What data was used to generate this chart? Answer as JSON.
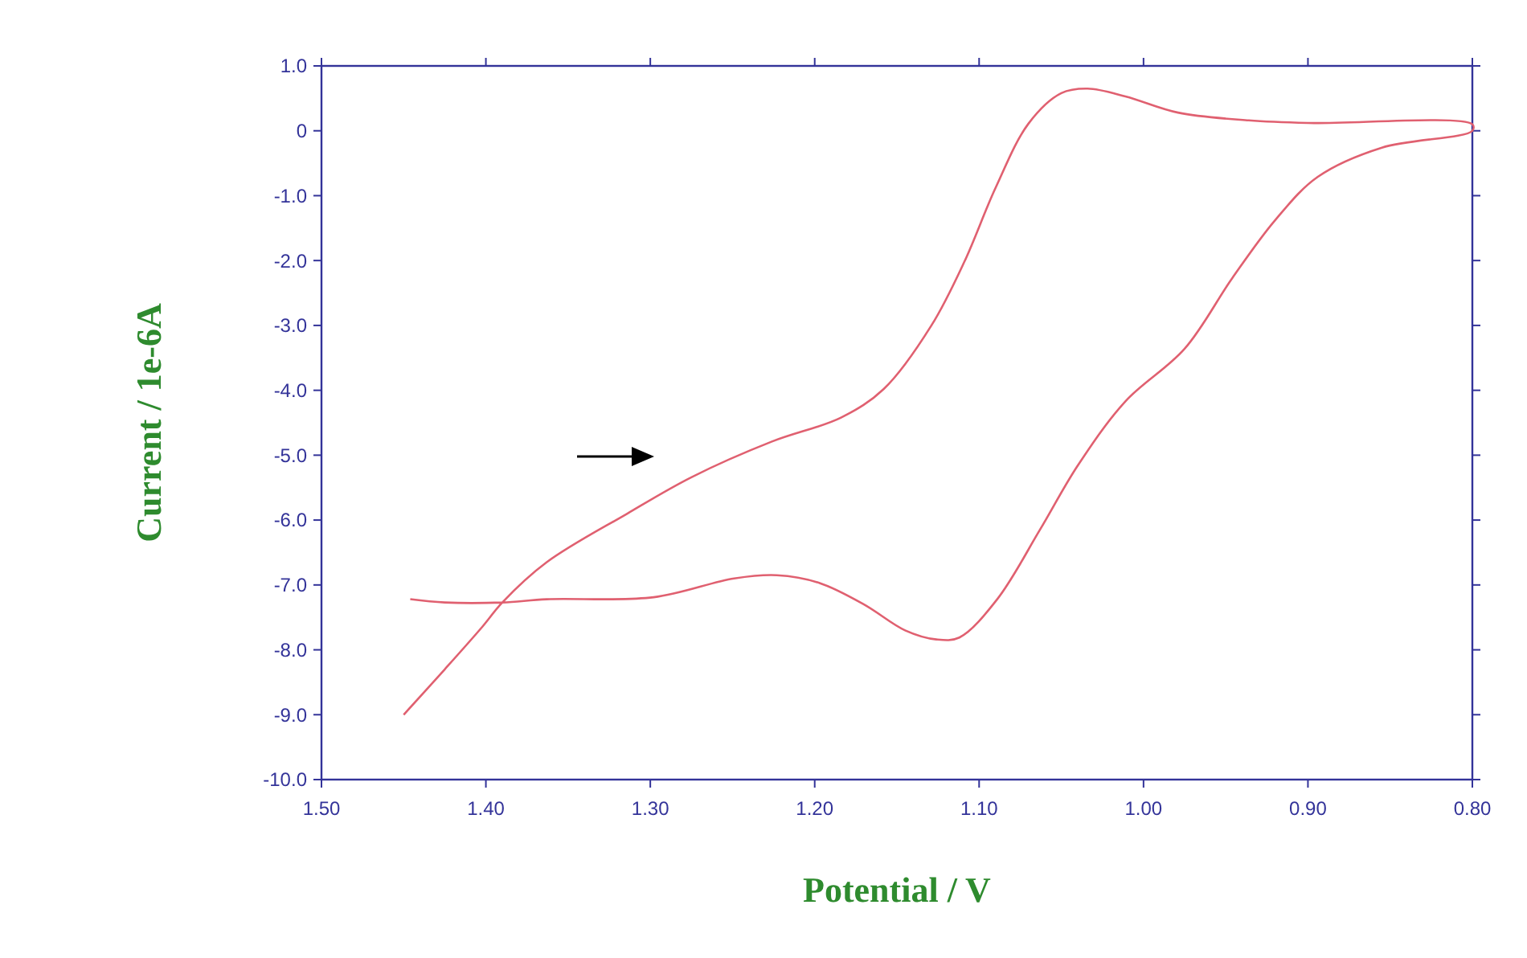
{
  "chart_data": {
    "type": "line",
    "xlabel": "Potential / V",
    "ylabel": "Current / 1e-6A",
    "xlim": [
      1.5,
      0.8
    ],
    "ylim": [
      -10,
      1
    ],
    "xticks": [
      {
        "value": 1.5,
        "label": "1.50"
      },
      {
        "value": 1.4,
        "label": "1.40"
      },
      {
        "value": 1.3,
        "label": "1.30"
      },
      {
        "value": 1.2,
        "label": "1.20"
      },
      {
        "value": 1.1,
        "label": "1.10"
      },
      {
        "value": 1.0,
        "label": "1.00"
      },
      {
        "value": 0.9,
        "label": "0.90"
      },
      {
        "value": 0.8,
        "label": "0.80"
      }
    ],
    "yticks": [
      {
        "value": 1,
        "label": "1.0"
      },
      0,
      {
        "value": -1,
        "label": "-1.0"
      },
      {
        "value": -2,
        "label": "-2.0"
      },
      {
        "value": -3,
        "label": "-3.0"
      },
      {
        "value": -4,
        "label": "-4.0"
      },
      {
        "value": -5,
        "label": "-5.0"
      },
      {
        "value": -6,
        "label": "-6.0"
      },
      {
        "value": -7,
        "label": "-7.0"
      },
      {
        "value": -8,
        "label": "-8.0"
      },
      {
        "value": -9,
        "label": "-9.0"
      },
      {
        "value": -10,
        "label": "-10.0"
      }
    ],
    "grid": false,
    "line_style": "solid",
    "series": [
      {
        "color": "#e06070",
        "x": [
          1.45,
          1.425,
          1.402,
          1.39,
          1.363,
          1.314,
          1.275,
          1.226,
          1.184,
          1.158,
          1.129,
          1.109,
          1.09,
          1.07,
          1.05,
          1.034,
          1.011,
          0.979,
          0.936,
          0.9,
          0.8,
          0.8,
          0.855,
          0.894,
          0.92,
          0.946,
          0.975,
          1.011,
          1.04,
          1.063,
          1.089,
          1.112,
          1.126,
          1.145,
          1.17,
          1.197,
          1.223,
          1.249,
          1.298,
          1.363,
          1.39,
          1.425,
          1.446
        ],
        "values": [
          -9.0,
          -8.3,
          -7.64,
          -7.27,
          -6.65,
          -5.9,
          -5.34,
          -4.79,
          -4.42,
          -3.98,
          -3.0,
          -2.02,
          -0.88,
          0.11,
          0.58,
          0.65,
          0.53,
          0.28,
          0.16,
          0.12,
          0.1,
          0.0,
          -0.26,
          -0.71,
          -1.38,
          -2.27,
          -3.36,
          -4.17,
          -5.16,
          -6.15,
          -7.22,
          -7.81,
          -7.84,
          -7.7,
          -7.3,
          -6.97,
          -6.85,
          -6.9,
          -7.19,
          -7.22,
          -7.27,
          -7.27,
          -7.22
        ]
      }
    ]
  }
}
